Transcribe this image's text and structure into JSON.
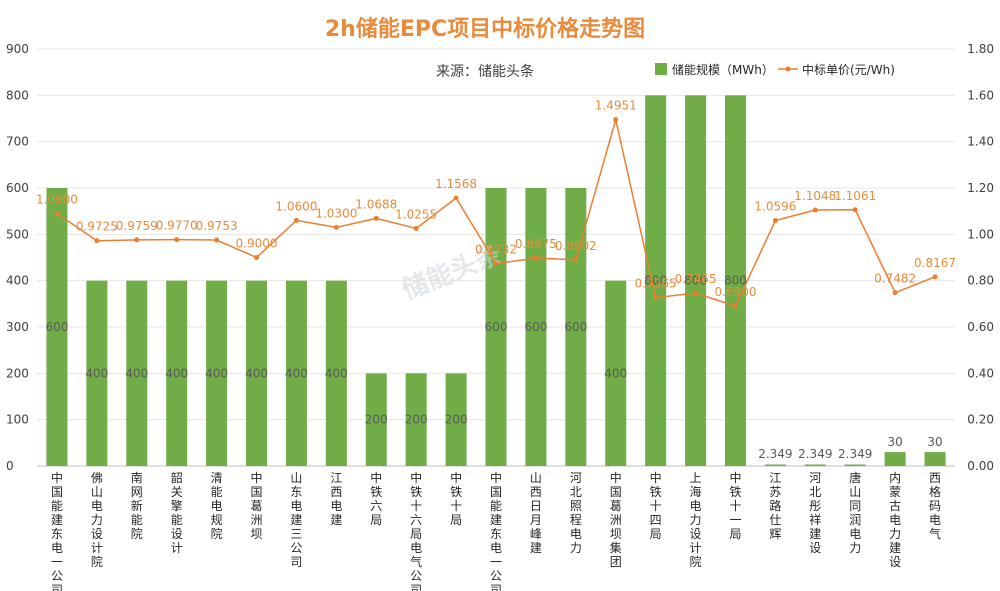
{
  "chart_data": {
    "type": "bar+line",
    "title": "2h储能EPC项目中标价格走势图",
    "subtitle": "来源：储能头条",
    "watermark": "储能头条",
    "categories": [
      "中国能建东电一公司",
      "佛山电力设计院",
      "南网新能院",
      "韶关擎能设计",
      "清能电规院",
      "中国葛洲坝",
      "山东电建三公司",
      "江西电建",
      "中铁六局",
      "中铁十六局电气公司",
      "中铁十局",
      "中国能建东电一公司",
      "山西日月峰建",
      "河北照程电力",
      "中国葛洲坝集团",
      "中铁十四局",
      "上海电力设计院",
      "中铁十一局",
      "江苏路仕辉",
      "河北彤祥建设",
      "唐山同润电力",
      "内蒙古电力建设",
      "西格码电气"
    ],
    "series": [
      {
        "name": "储能规模（MWh）",
        "type": "bar",
        "axis": "left",
        "color": "#70AD47",
        "values": [
          600,
          400,
          400,
          400,
          400,
          400,
          400,
          400,
          200,
          200,
          200,
          600,
          600,
          600,
          400,
          800,
          800,
          800,
          2.349,
          2.349,
          2.349,
          30,
          30
        ],
        "labels": [
          "600",
          "400",
          "400",
          "400",
          "400",
          "400",
          "400",
          "400",
          "200",
          "200",
          "200",
          "600",
          "600",
          "600",
          "400",
          "800",
          "800",
          "800",
          "2.349",
          "2.349",
          "2.349",
          "30",
          "30"
        ]
      },
      {
        "name": "中标单价(元/Wh)",
        "type": "line",
        "axis": "right",
        "color": "#ED7D31",
        "values": [
          1.09,
          0.9725,
          0.9759,
          0.977,
          0.9753,
          0.9,
          1.06,
          1.03,
          1.0688,
          1.0255,
          1.1568,
          0.8732,
          0.8975,
          0.8902,
          1.4951,
          0.7265,
          0.7465,
          0.69,
          1.0596,
          1.1048,
          1.1061,
          0.7482,
          0.8167
        ],
        "labels": [
          "1.0900",
          "0.9725",
          "0.9759",
          "0.9770",
          "0.9753",
          "0.9000",
          "1.0600",
          "1.0300",
          "1.0688",
          "1.0255",
          "1.1568",
          "0.8732",
          "0.8975",
          "0.8902",
          "1.4951",
          "0.7265",
          "0.7465",
          "0.6900",
          "1.0596",
          "1.1048",
          "1.1061",
          "0.7482",
          "0.8167"
        ]
      }
    ],
    "yleft": {
      "lim": [
        0,
        900
      ],
      "ticks": [
        "0",
        "100",
        "200",
        "300",
        "400",
        "500",
        "600",
        "700",
        "800",
        "900"
      ]
    },
    "yright": {
      "lim": [
        0,
        1.8
      ],
      "ticks": [
        "0.00",
        "0.20",
        "0.40",
        "0.60",
        "0.80",
        "1.00",
        "1.20",
        "1.40",
        "1.60",
        "1.80"
      ]
    },
    "grid": true,
    "legend_position": "top-right"
  }
}
